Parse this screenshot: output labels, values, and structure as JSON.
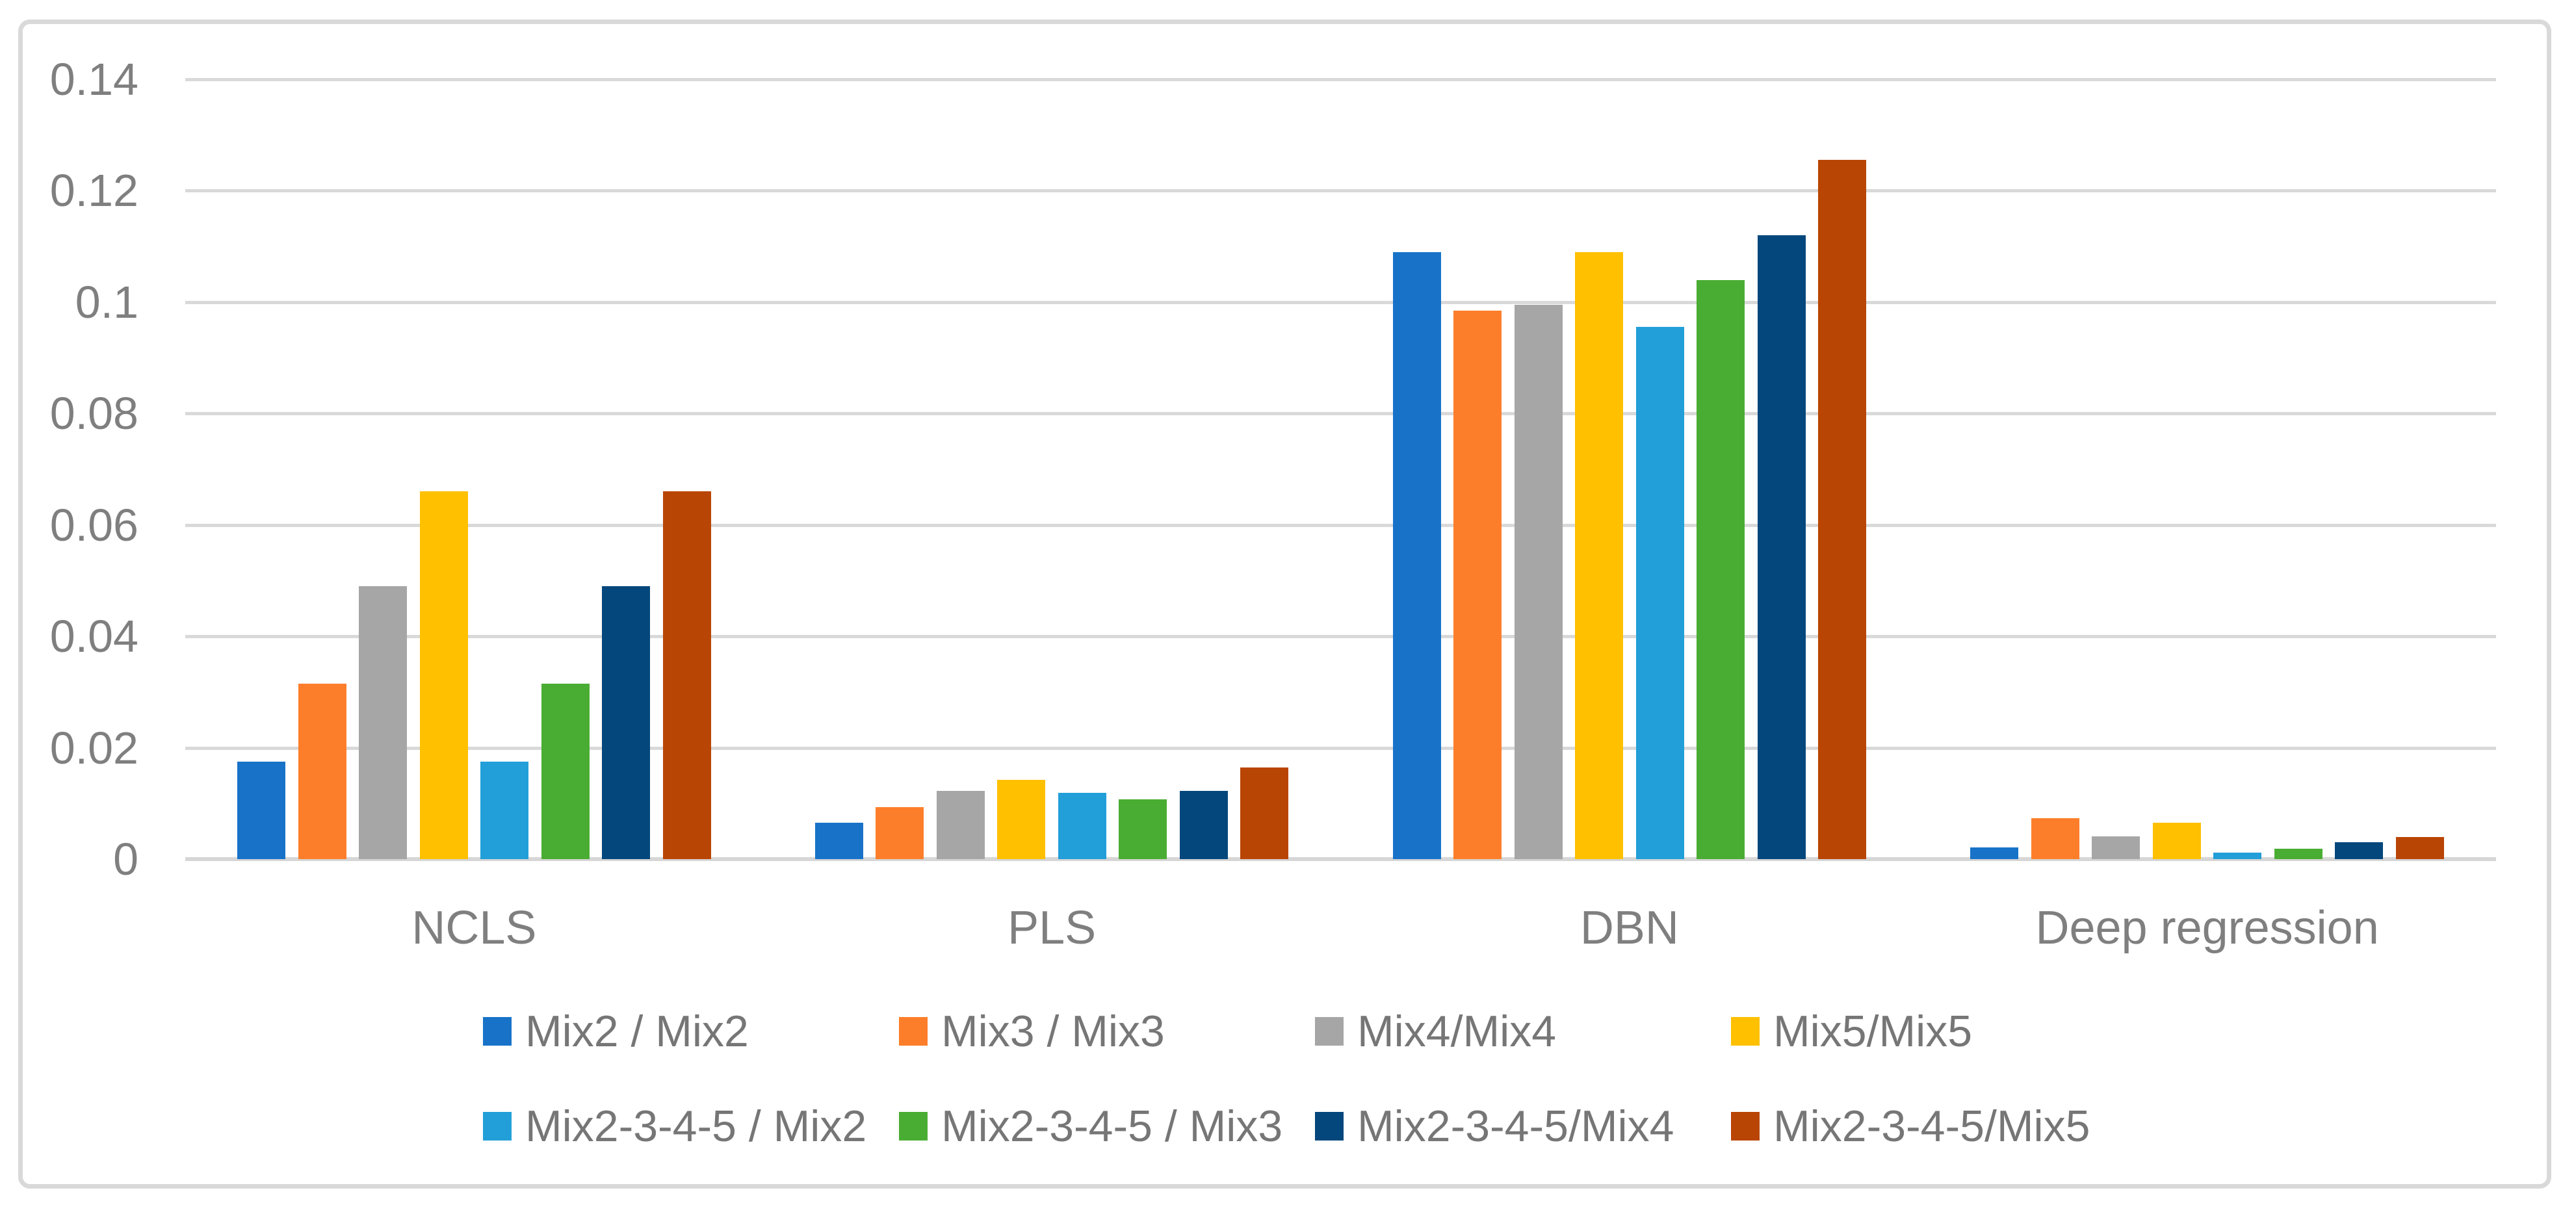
{
  "chart_data": {
    "type": "bar",
    "title": "",
    "xlabel": "",
    "ylabel": "",
    "categories": [
      "NCLS",
      "PLS",
      "DBN",
      "Deep regression"
    ],
    "series": [
      {
        "name": "Mix2 / Mix2",
        "color": "#1873C8",
        "values": [
          0.0175,
          0.0065,
          0.109,
          0.0021
        ]
      },
      {
        "name": "Mix3 / Mix3",
        "color": "#FD7E2A",
        "values": [
          0.0315,
          0.0093,
          0.0985,
          0.0074
        ]
      },
      {
        "name": "Mix4/Mix4",
        "color": "#A6A6A6",
        "values": [
          0.049,
          0.0122,
          0.0995,
          0.0041
        ]
      },
      {
        "name": "Mix5/Mix5",
        "color": "#FFC000",
        "values": [
          0.066,
          0.0142,
          0.109,
          0.0065
        ]
      },
      {
        "name": "Mix2-3-4-5 / Mix2",
        "color": "#229FD8",
        "values": [
          0.0175,
          0.0119,
          0.0955,
          0.0012
        ]
      },
      {
        "name": "Mix2-3-4-5 / Mix3",
        "color": "#4AAD33",
        "values": [
          0.0315,
          0.0107,
          0.104,
          0.0019
        ]
      },
      {
        "name": "Mix2-3-4-5/Mix4",
        "color": "#04477C",
        "values": [
          0.049,
          0.0122,
          0.112,
          0.003
        ]
      },
      {
        "name": "Mix2-3-4-5/Mix5",
        "color": "#B94504",
        "values": [
          0.066,
          0.0165,
          0.1255,
          0.004
        ]
      }
    ],
    "ylim": [
      0,
      0.14
    ],
    "y_tick_values": [
      0,
      0.02,
      0.04,
      0.06,
      0.08,
      0.1,
      0.12,
      0.14
    ],
    "y_tick_labels": [
      "0",
      "0.02",
      "0.04",
      "0.06",
      "0.08",
      "0.1",
      "0.12",
      "0.14"
    ],
    "grid": "horizontal",
    "legend_position": "bottom",
    "legend_rows": 2
  },
  "colors": {
    "background": "#FFFFFF",
    "gridline": "#D9D9D9",
    "axis_line": "#D6D6D6",
    "chart_border": "#D9D9D9",
    "tick_text": "#7F7F7F",
    "category_text": "#7F7F7F",
    "legend_text": "#767676"
  }
}
